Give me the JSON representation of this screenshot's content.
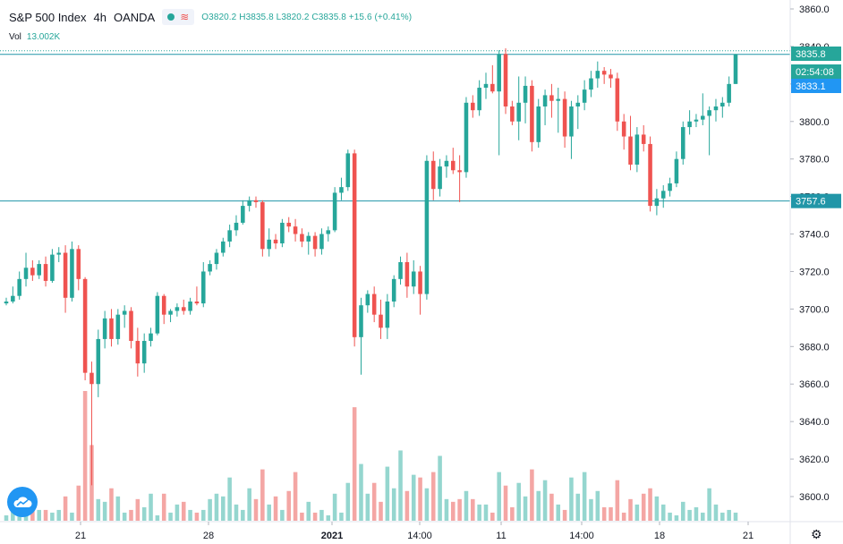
{
  "legend": {
    "symbol": "S&P 500 Index",
    "interval": "4h",
    "source": "OANDA",
    "ohlc": {
      "o_label": "O",
      "o": "3820.2",
      "h_label": "H",
      "h": "3835.8",
      "l_label": "L",
      "l": "3820.2",
      "c_label": "C",
      "c": "3835.8",
      "change": "+15.6 (+0.41%)"
    }
  },
  "volume": {
    "label": "Vol",
    "value": "13.002K"
  },
  "colors": {
    "up": "#26a69a",
    "down": "#ef5350",
    "up_vol": "#95d6cf",
    "down_vol": "#f4a6a4",
    "hline": "#2196a8",
    "price_tag": "#26a69a",
    "current_tag": "#2196f3",
    "level_tag": "#2196a8"
  },
  "icons": {
    "logo": "tradingview-cloud-icon",
    "settings": "gear-icon"
  },
  "chart_data": {
    "type": "candlestick",
    "ylim": [
      3590,
      3870
    ],
    "y_ticks": [
      3600,
      3620,
      3640,
      3660,
      3680,
      3700,
      3720,
      3740,
      3760,
      3780,
      3800,
      3820,
      3840,
      3860
    ],
    "x_ticks": [
      "21",
      "28",
      "2021",
      "14:00",
      "11",
      "14:00",
      "18",
      "21"
    ],
    "horizontal_levels": [
      3835.8,
      3757.6
    ],
    "price_labels": [
      {
        "text": "3835.8",
        "value": 3835.8,
        "kind": "last"
      },
      {
        "text": "02:54:08",
        "kind": "countdown"
      },
      {
        "text": "3833.1",
        "value": 3833.1,
        "kind": "bid"
      },
      {
        "text": "3757.6",
        "value": 3757.6,
        "kind": "level"
      }
    ],
    "candles": [
      [
        3703,
        3706,
        3702,
        3704
      ],
      [
        3704,
        3712,
        3703,
        3707
      ],
      [
        3707,
        3720,
        3705,
        3716
      ],
      [
        3716,
        3730,
        3712,
        3722
      ],
      [
        3722,
        3726,
        3715,
        3718
      ],
      [
        3718,
        3726,
        3716,
        3724
      ],
      [
        3724,
        3728,
        3712,
        3715
      ],
      [
        3715,
        3732,
        3714,
        3729
      ],
      [
        3729,
        3733,
        3725,
        3730
      ],
      [
        3730,
        3734,
        3698,
        3706
      ],
      [
        3706,
        3736,
        3704,
        3732
      ],
      [
        3732,
        3734,
        3710,
        3716
      ],
      [
        3716,
        3717,
        3662,
        3666
      ],
      [
        3666,
        3672,
        3606,
        3660
      ],
      [
        3660,
        3689,
        3653,
        3684
      ],
      [
        3684,
        3699,
        3679,
        3695
      ],
      [
        3695,
        3700,
        3680,
        3684
      ],
      [
        3684,
        3700,
        3681,
        3697
      ],
      [
        3697,
        3702,
        3690,
        3699
      ],
      [
        3699,
        3701,
        3679,
        3683
      ],
      [
        3683,
        3690,
        3664,
        3671
      ],
      [
        3671,
        3687,
        3666,
        3683
      ],
      [
        3683,
        3690,
        3680,
        3687
      ],
      [
        3687,
        3709,
        3686,
        3707
      ],
      [
        3707,
        3708,
        3692,
        3697
      ],
      [
        3697,
        3700,
        3693,
        3699
      ],
      [
        3699,
        3703,
        3696,
        3701
      ],
      [
        3701,
        3705,
        3697,
        3699
      ],
      [
        3699,
        3706,
        3697,
        3704
      ],
      [
        3704,
        3712,
        3702,
        3703
      ],
      [
        3703,
        3725,
        3701,
        3720
      ],
      [
        3720,
        3726,
        3718,
        3724
      ],
      [
        3724,
        3732,
        3721,
        3730
      ],
      [
        3730,
        3738,
        3728,
        3736
      ],
      [
        3736,
        3745,
        3733,
        3742
      ],
      [
        3742,
        3750,
        3739,
        3746
      ],
      [
        3746,
        3758,
        3745,
        3755
      ],
      [
        3755,
        3760,
        3752,
        3758
      ],
      [
        3758,
        3760,
        3754,
        3757
      ],
      [
        3757,
        3758,
        3728,
        3732
      ],
      [
        3732,
        3743,
        3728,
        3737
      ],
      [
        3737,
        3740,
        3732,
        3735
      ],
      [
        3735,
        3748,
        3733,
        3746
      ],
      [
        3746,
        3749,
        3741,
        3744
      ],
      [
        3744,
        3748,
        3736,
        3740
      ],
      [
        3740,
        3743,
        3733,
        3736
      ],
      [
        3736,
        3741,
        3729,
        3739
      ],
      [
        3739,
        3741,
        3728,
        3732
      ],
      [
        3732,
        3743,
        3729,
        3740
      ],
      [
        3740,
        3744,
        3736,
        3742
      ],
      [
        3742,
        3765,
        3741,
        3762
      ],
      [
        3762,
        3770,
        3758,
        3765
      ],
      [
        3765,
        3785,
        3763,
        3783
      ],
      [
        3783,
        3785,
        3680,
        3685
      ],
      [
        3685,
        3706,
        3665,
        3702
      ],
      [
        3702,
        3710,
        3698,
        3708
      ],
      [
        3708,
        3712,
        3693,
        3697
      ],
      [
        3697,
        3705,
        3684,
        3690
      ],
      [
        3690,
        3708,
        3684,
        3704
      ],
      [
        3704,
        3718,
        3701,
        3716
      ],
      [
        3716,
        3728,
        3713,
        3725
      ],
      [
        3725,
        3730,
        3706,
        3712
      ],
      [
        3712,
        3726,
        3708,
        3720
      ],
      [
        3720,
        3723,
        3697,
        3708
      ],
      [
        3708,
        3782,
        3705,
        3779
      ],
      [
        3779,
        3784,
        3758,
        3764
      ],
      [
        3764,
        3780,
        3760,
        3776
      ],
      [
        3776,
        3782,
        3770,
        3779
      ],
      [
        3779,
        3786,
        3772,
        3774
      ],
      [
        3774,
        3782,
        3757,
        3773
      ],
      [
        3773,
        3813,
        3770,
        3810
      ],
      [
        3810,
        3814,
        3802,
        3806
      ],
      [
        3806,
        3822,
        3803,
        3818
      ],
      [
        3818,
        3826,
        3812,
        3820
      ],
      [
        3820,
        3830,
        3815,
        3816
      ],
      [
        3816,
        3838,
        3782,
        3836
      ],
      [
        3836,
        3839,
        3804,
        3808
      ],
      [
        3808,
        3811,
        3798,
        3800
      ],
      [
        3800,
        3824,
        3790,
        3810
      ],
      [
        3810,
        3824,
        3799,
        3819
      ],
      [
        3819,
        3822,
        3784,
        3789
      ],
      [
        3789,
        3812,
        3786,
        3808
      ],
      [
        3808,
        3817,
        3798,
        3814
      ],
      [
        3814,
        3820,
        3802,
        3811
      ],
      [
        3811,
        3818,
        3794,
        3812
      ],
      [
        3812,
        3816,
        3786,
        3792
      ],
      [
        3792,
        3811,
        3780,
        3808
      ],
      [
        3808,
        3814,
        3796,
        3810
      ],
      [
        3810,
        3822,
        3806,
        3817
      ],
      [
        3817,
        3827,
        3813,
        3823
      ],
      [
        3823,
        3832,
        3818,
        3827
      ],
      [
        3827,
        3829,
        3820,
        3825
      ],
      [
        3825,
        3828,
        3818,
        3823
      ],
      [
        3823,
        3826,
        3795,
        3800
      ],
      [
        3800,
        3804,
        3785,
        3792
      ],
      [
        3792,
        3803,
        3774,
        3777
      ],
      [
        3777,
        3797,
        3773,
        3793
      ],
      [
        3793,
        3798,
        3784,
        3788
      ],
      [
        3788,
        3792,
        3752,
        3755
      ],
      [
        3755,
        3764,
        3750,
        3759
      ],
      [
        3759,
        3766,
        3754,
        3763
      ],
      [
        3763,
        3770,
        3760,
        3767
      ],
      [
        3767,
        3784,
        3765,
        3780
      ],
      [
        3780,
        3800,
        3777,
        3797
      ],
      [
        3797,
        3806,
        3793,
        3800
      ],
      [
        3800,
        3804,
        3797,
        3801
      ],
      [
        3801,
        3815,
        3798,
        3803
      ],
      [
        3803,
        3808,
        3782,
        3806
      ],
      [
        3806,
        3812,
        3800,
        3808
      ],
      [
        3808,
        3813,
        3802,
        3810
      ],
      [
        3810,
        3824,
        3808,
        3820
      ],
      [
        3820,
        3836,
        3820,
        3835.8
      ]
    ],
    "volumes": [
      2,
      4,
      3,
      3,
      9,
      4,
      4,
      3,
      4,
      9,
      3,
      13,
      48,
      28,
      8,
      7,
      12,
      9,
      3,
      4,
      8,
      5,
      10,
      2,
      10,
      3,
      6,
      7,
      4,
      3,
      4,
      8,
      10,
      9,
      16,
      6,
      4,
      12,
      8,
      19,
      6,
      9,
      4,
      11,
      18,
      3,
      7,
      3,
      4,
      2,
      10,
      3,
      14,
      42,
      21,
      10,
      14,
      7,
      20,
      12,
      26,
      11,
      17,
      16,
      12,
      18,
      24,
      8,
      7,
      8,
      11,
      8,
      6,
      6,
      3,
      18,
      13,
      5,
      14,
      9,
      19,
      11,
      15,
      10,
      6,
      4,
      16,
      10,
      18,
      8,
      11,
      5,
      5,
      15,
      3,
      8,
      6,
      10,
      12,
      9,
      6,
      3,
      2,
      7,
      4,
      5,
      3,
      12,
      6,
      3,
      4,
      3,
      4
    ]
  }
}
